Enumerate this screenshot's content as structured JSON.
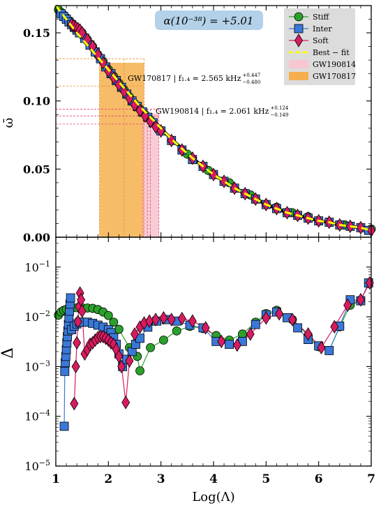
{
  "chart_data": [
    {
      "type": "line",
      "panel": "top",
      "ylabel": "ω̄",
      "xlim": [
        1,
        7
      ],
      "ylim": [
        0,
        0.17
      ],
      "yticks": [
        "0.00",
        "0.05",
        "0.10",
        "0.15"
      ],
      "annotation_alpha": "α(10⁻³⁸) = +5.01",
      "legend_placement": "top-right",
      "legend": {
        "stiff": "Stiff",
        "inter": "Inter",
        "soft": "Soft",
        "bestfit": "Best − fit",
        "gw190814": "GW190814",
        "gw170817": "GW170817"
      },
      "gw170817_label": "GW170817 | f₁.₄ = 2.565 kHz",
      "gw170817_sup": "+0.447",
      "gw170817_sub": "−0.480",
      "gw190814_label": "GW190814 | f₁.₄ = 2.061 kHz",
      "gw190814_sup": "+0.124",
      "gw190814_sub": "−0.149",
      "colors": {
        "stiff": "#2ca02c",
        "inter": "#3a78d8",
        "soft": "#d81b60",
        "bestfit": "#ffff00",
        "gw190814": "#f7c6d0",
        "gw170817": "#f5b04d",
        "annotation_bg": "#b3d1e8",
        "legend_bg": "#d9d9d9"
      },
      "bands": {
        "gw170817": {
          "x_range": [
            1.83,
            2.68
          ],
          "dashed_x": [
            1.83,
            2.3,
            2.68
          ],
          "dashed_y": [
            0.131,
            0.111
          ]
        },
        "gw190814": {
          "x_range": [
            2.66,
            2.96
          ],
          "dashed_x": [
            2.66,
            2.74,
            2.8,
            2.96
          ],
          "dashed_y": [
            0.094,
            0.089,
            0.083
          ]
        }
      },
      "bestfit": {
        "x": [
          1.0,
          1.2,
          1.4,
          1.6,
          1.8,
          2.0,
          2.2,
          2.4,
          2.6,
          2.8,
          3.0,
          3.2,
          3.4,
          3.6,
          3.8,
          4.0,
          4.2,
          4.4,
          4.6,
          4.8,
          5.0,
          5.2,
          5.4,
          5.6,
          5.8,
          6.0,
          6.2,
          6.4,
          6.6,
          6.8,
          7.0
        ],
        "y": [
          0.17,
          0.16,
          0.15,
          0.141,
          0.132,
          0.123,
          0.114,
          0.105,
          0.096,
          0.088,
          0.08,
          0.072,
          0.065,
          0.058,
          0.052,
          0.046,
          0.041,
          0.036,
          0.032,
          0.028,
          0.024,
          0.021,
          0.018,
          0.016,
          0.014,
          0.012,
          0.011,
          0.009,
          0.008,
          0.007,
          0.005
        ]
      },
      "series": [
        {
          "name": "Stiff",
          "marker": "circle",
          "x": [
            1.05,
            1.1,
            1.15,
            1.2,
            1.25,
            1.3,
            1.35,
            1.4,
            1.45,
            1.5,
            1.6,
            1.7,
            1.8,
            1.9,
            2.0,
            2.1,
            2.2,
            2.3,
            2.4,
            2.5,
            2.6,
            2.7,
            2.8,
            3.0,
            3.2,
            3.5,
            3.9,
            4.3,
            4.7,
            5.2,
            5.5,
            5.8,
            6.2,
            6.5,
            7.0
          ],
          "y": [
            0.167,
            0.165,
            0.163,
            0.161,
            0.159,
            0.157,
            0.155,
            0.153,
            0.152,
            0.15,
            0.145,
            0.14,
            0.134,
            0.129,
            0.123,
            0.118,
            0.113,
            0.108,
            0.103,
            0.098,
            0.094,
            0.09,
            0.086,
            0.078,
            0.071,
            0.061,
            0.049,
            0.04,
            0.031,
            0.022,
            0.018,
            0.015,
            0.011,
            0.009,
            0.006
          ]
        },
        {
          "name": "Inter",
          "marker": "square",
          "x": [
            1.1,
            1.15,
            1.2,
            1.25,
            1.3,
            1.35,
            1.4,
            1.45,
            1.55,
            1.65,
            1.75,
            1.85,
            1.95,
            2.05,
            2.15,
            2.25,
            2.35,
            2.45,
            2.55,
            2.65,
            2.75,
            2.85,
            3.0,
            3.2,
            3.4,
            3.6,
            3.8,
            4.0,
            4.2,
            4.4,
            4.6,
            4.8,
            5.0,
            5.2,
            5.4,
            5.6,
            5.8,
            6.0,
            6.2,
            6.4,
            6.6,
            6.8,
            6.95
          ],
          "y": [
            0.164,
            0.162,
            0.16,
            0.158,
            0.156,
            0.154,
            0.152,
            0.15,
            0.146,
            0.141,
            0.136,
            0.131,
            0.125,
            0.12,
            0.115,
            0.11,
            0.105,
            0.1,
            0.096,
            0.092,
            0.088,
            0.084,
            0.078,
            0.071,
            0.064,
            0.057,
            0.052,
            0.046,
            0.041,
            0.036,
            0.032,
            0.028,
            0.024,
            0.021,
            0.018,
            0.016,
            0.014,
            0.012,
            0.011,
            0.009,
            0.008,
            0.007,
            0.005
          ]
        },
        {
          "name": "Soft",
          "marker": "diamond",
          "x": [
            1.3,
            1.34,
            1.38,
            1.42,
            1.46,
            1.5,
            1.6,
            1.7,
            1.8,
            1.9,
            2.0,
            2.1,
            2.2,
            2.3,
            2.4,
            2.5,
            2.6,
            2.7,
            2.8,
            2.9,
            3.0,
            3.2,
            3.4,
            3.6,
            3.8,
            4.0,
            4.2,
            4.4,
            4.6,
            4.8,
            5.0,
            5.2,
            5.4,
            5.6,
            5.8,
            6.0,
            6.2,
            6.4,
            6.6,
            6.8,
            7.0
          ],
          "y": [
            0.156,
            0.155,
            0.154,
            0.153,
            0.152,
            0.15,
            0.145,
            0.14,
            0.134,
            0.128,
            0.122,
            0.117,
            0.112,
            0.107,
            0.102,
            0.097,
            0.093,
            0.089,
            0.085,
            0.081,
            0.078,
            0.071,
            0.064,
            0.058,
            0.052,
            0.046,
            0.041,
            0.036,
            0.032,
            0.028,
            0.024,
            0.021,
            0.018,
            0.016,
            0.014,
            0.012,
            0.011,
            0.009,
            0.008,
            0.007,
            0.005
          ]
        }
      ]
    },
    {
      "type": "line",
      "panel": "bottom",
      "scale": "log",
      "ylabel": "Δ",
      "xlabel": "Log(Λ)",
      "xlim": [
        1,
        7
      ],
      "ylim_log10": [
        -5,
        -0.4
      ],
      "xticks": [
        "1",
        "2",
        "3",
        "4",
        "5",
        "6",
        "7"
      ],
      "yticks": [
        {
          "value": -5,
          "base": "10",
          "exp": "−5"
        },
        {
          "value": -4,
          "base": "10",
          "exp": "−4"
        },
        {
          "value": -3,
          "base": "10",
          "exp": "−3"
        },
        {
          "value": -2,
          "base": "10",
          "exp": "−2"
        },
        {
          "value": -1,
          "base": "10",
          "exp": "−1"
        }
      ],
      "series": [
        {
          "name": "Stiff",
          "marker": "circle",
          "x": [
            1.05,
            1.1,
            1.15,
            1.2,
            1.3,
            1.4,
            1.5,
            1.6,
            1.7,
            1.8,
            1.9,
            2.0,
            2.1,
            2.2,
            2.4,
            2.55,
            2.6,
            2.8,
            3.05,
            3.3,
            3.55,
            3.8,
            4.05,
            4.3,
            4.55,
            4.8,
            5.0,
            5.2,
            5.5,
            5.8,
            6.0,
            6.2,
            6.4,
            6.6,
            6.8,
            6.95
          ],
          "y": [
            0.0108,
            0.0125,
            0.0135,
            0.0142,
            0.0148,
            0.0152,
            0.0152,
            0.015,
            0.0148,
            0.014,
            0.0125,
            0.0106,
            0.0078,
            0.0056,
            0.0024,
            0.0016,
            0.00082,
            0.0024,
            0.0034,
            0.0052,
            0.0064,
            0.0058,
            0.0042,
            0.0034,
            0.0045,
            0.0078,
            0.0116,
            0.0135,
            0.0088,
            0.0042,
            0.0025,
            0.0021,
            0.0063,
            0.0171,
            0.021,
            0.047
          ]
        },
        {
          "name": "Inter",
          "marker": "square",
          "x": [
            1.16,
            1.17,
            1.18,
            1.19,
            1.2,
            1.21,
            1.22,
            1.23,
            1.24,
            1.25,
            1.26,
            1.27,
            1.28,
            1.3,
            1.35,
            1.4,
            1.45,
            1.5,
            1.6,
            1.7,
            1.8,
            1.9,
            2.0,
            2.05,
            2.1,
            2.15,
            2.2,
            2.27,
            2.35,
            2.45,
            2.52,
            2.6,
            2.75,
            2.92,
            3.1,
            3.3,
            3.55,
            3.8,
            4.05,
            4.3,
            4.55,
            4.8,
            5.0,
            5.2,
            5.4,
            5.6,
            5.8,
            6.0,
            6.2,
            6.4,
            6.6,
            6.8,
            6.95
          ],
          "y": [
            6.3e-05,
            0.0008,
            0.0012,
            0.0016,
            0.0022,
            0.003,
            0.004,
            0.0052,
            0.007,
            0.0095,
            0.013,
            0.018,
            0.024,
            0.0055,
            0.0065,
            0.0072,
            0.0078,
            0.0078,
            0.0078,
            0.0074,
            0.0068,
            0.0062,
            0.0055,
            0.0048,
            0.0038,
            0.0028,
            0.0018,
            0.001,
            0.0014,
            0.002,
            0.0028,
            0.0037,
            0.0062,
            0.0082,
            0.0088,
            0.0082,
            0.0068,
            0.006,
            0.0032,
            0.0028,
            0.0032,
            0.007,
            0.011,
            0.0125,
            0.0096,
            0.006,
            0.0035,
            0.0026,
            0.0021,
            0.0065,
            0.022,
            0.021,
            0.048
          ]
        },
        {
          "name": "Soft",
          "marker": "diamond",
          "x": [
            1.35,
            1.38,
            1.4,
            1.42,
            1.44,
            1.46,
            1.48,
            1.5,
            1.55,
            1.6,
            1.65,
            1.7,
            1.75,
            1.8,
            1.85,
            1.9,
            1.95,
            2.0,
            2.05,
            2.1,
            2.15,
            2.2,
            2.25,
            2.33,
            2.4,
            2.5,
            2.6,
            2.68,
            2.78,
            2.9,
            3.05,
            3.2,
            3.4,
            3.6,
            3.85,
            4.15,
            4.45,
            4.7,
            5.0,
            5.25,
            5.5,
            5.8,
            6.05,
            6.3,
            6.55,
            6.8,
            6.97
          ],
          "y": [
            0.00018,
            0.001,
            0.003,
            0.008,
            0.016,
            0.03,
            0.022,
            0.013,
            0.0018,
            0.0022,
            0.0028,
            0.003,
            0.0034,
            0.0038,
            0.004,
            0.004,
            0.0037,
            0.0034,
            0.003,
            0.0028,
            0.0022,
            0.0016,
            0.001,
            0.00019,
            0.0013,
            0.0045,
            0.0062,
            0.0075,
            0.0082,
            0.0088,
            0.0095,
            0.0088,
            0.0092,
            0.0082,
            0.006,
            0.0032,
            0.0027,
            0.0045,
            0.0095,
            0.0115,
            0.0088,
            0.0045,
            0.0024,
            0.0063,
            0.0171,
            0.022,
            0.048
          ]
        }
      ]
    }
  ]
}
